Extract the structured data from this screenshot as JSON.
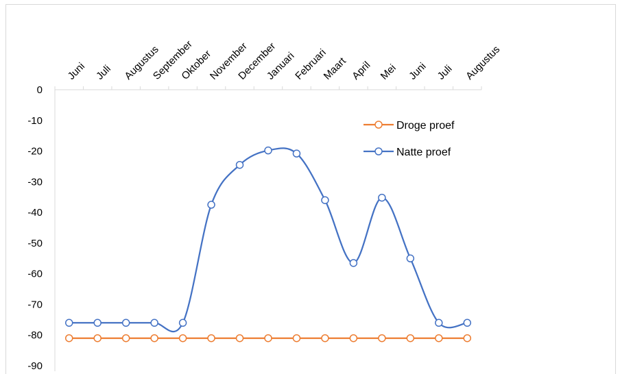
{
  "chart_data": {
    "type": "line",
    "categories": [
      "Juni",
      "Juli",
      "Augustus",
      "September",
      "Oktober",
      "November",
      "December",
      "Januari",
      "Februari",
      "Maart",
      "April",
      "Mei",
      "Juni",
      "Juli",
      "Augustus"
    ],
    "ylim": [
      -90,
      0
    ],
    "yticks": [
      0,
      -10,
      -20,
      -30,
      -40,
      -50,
      -60,
      -70,
      -80,
      -90
    ],
    "x_axis_position": "top",
    "legend_position": "top-right",
    "grid": false,
    "series": [
      {
        "name": "Droge proef",
        "color": "#ED7D31",
        "smooth": false,
        "values": [
          -81,
          -81,
          -81,
          -81,
          -81,
          -81,
          -81,
          -81,
          -81,
          -81,
          -81,
          -81,
          -81,
          -81,
          -81
        ]
      },
      {
        "name": "Natte proef",
        "color": "#4472C4",
        "smooth": true,
        "values": [
          -76,
          -76,
          -76,
          -76,
          -76,
          -37.5,
          -24.5,
          -19.8,
          -20.8,
          -36,
          -56.5,
          -35.2,
          -55,
          -76,
          -76
        ]
      }
    ]
  }
}
